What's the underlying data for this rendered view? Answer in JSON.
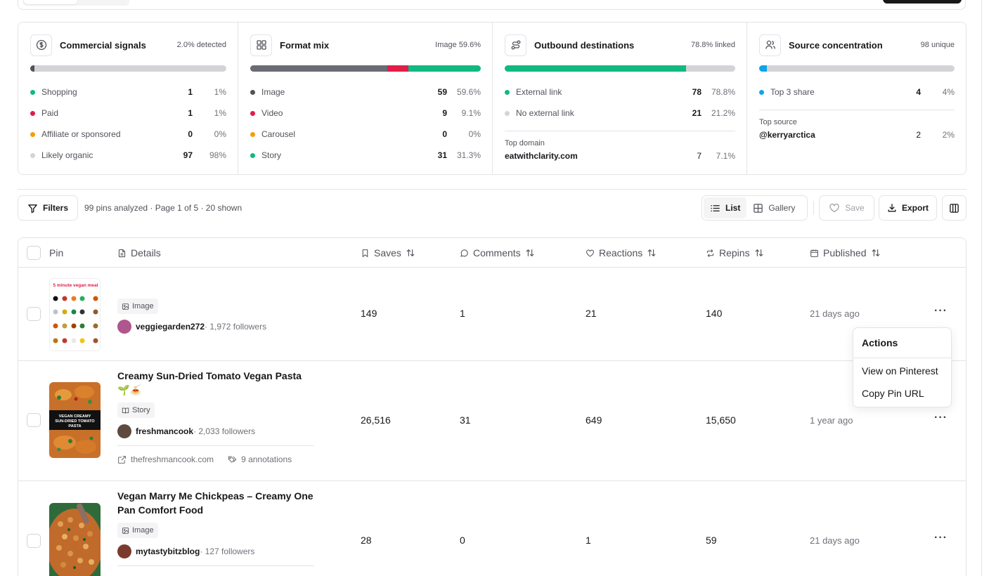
{
  "colors": {
    "green": "#10b981",
    "red": "#e11d48",
    "amber": "#f59e0b",
    "gray": "#d4d4d8",
    "dark": "#52525b",
    "blue": "#0ea5e9"
  },
  "stats": [
    {
      "title": "Commercial signals",
      "meta": "2.0% detected",
      "icon": "dollar-circle-icon",
      "bar": [
        {
          "value": 0.02,
          "color": "#52525b"
        }
      ],
      "rows": [
        {
          "label": "Shopping",
          "count": "1",
          "pct": "1%",
          "color": "#10b981"
        },
        {
          "label": "Paid",
          "count": "1",
          "pct": "1%",
          "color": "#e11d48"
        },
        {
          "label": "Affiliate or sponsored",
          "count": "0",
          "pct": "0%",
          "color": "#f59e0b"
        },
        {
          "label": "Likely organic",
          "count": "97",
          "pct": "98%",
          "color": "#d4d4d8"
        }
      ]
    },
    {
      "title": "Format mix",
      "meta": "Image 59.6%",
      "icon": "grid-icon",
      "bar": [
        {
          "value": 0.596,
          "color": "#6b6b73"
        },
        {
          "value": 0.091,
          "color": "#e11d48"
        },
        {
          "value": 0.313,
          "color": "#10b981"
        }
      ],
      "rows": [
        {
          "label": "Image",
          "count": "59",
          "pct": "59.6%",
          "color": "#52525b"
        },
        {
          "label": "Video",
          "count": "9",
          "pct": "9.1%",
          "color": "#e11d48"
        },
        {
          "label": "Carousel",
          "count": "0",
          "pct": "0%",
          "color": "#f59e0b"
        },
        {
          "label": "Story",
          "count": "31",
          "pct": "31.3%",
          "color": "#10b981"
        }
      ]
    },
    {
      "title": "Outbound destinations",
      "meta": "78.8% linked",
      "icon": "route-icon",
      "bar": [
        {
          "value": 0.788,
          "color": "#10b981"
        }
      ],
      "rows": [
        {
          "label": "External link",
          "count": "78",
          "pct": "78.8%",
          "color": "#10b981"
        },
        {
          "label": "No external link",
          "count": "21",
          "pct": "21.2%",
          "color": "#d4d4d8"
        }
      ],
      "sub": {
        "label": "Top domain",
        "name": "eatwithclarity.com",
        "count": "7",
        "pct": "7.1%"
      }
    },
    {
      "title": "Source concentration",
      "meta": "98 unique",
      "icon": "users-icon",
      "bar": [
        {
          "value": 0.04,
          "color": "#0ea5e9"
        }
      ],
      "rows": [
        {
          "label": "Top 3 share",
          "count": "4",
          "pct": "4%",
          "color": "#0ea5e9"
        }
      ],
      "sub": {
        "label": "Top source",
        "name": "@kerryarctica",
        "count": "2",
        "pct": "2%"
      }
    }
  ],
  "toolbar": {
    "filters_label": "Filters",
    "summary": "99 pins analyzed · Page 1 of 5 · 20 shown",
    "list_label": "List",
    "gallery_label": "Gallery",
    "save_label": "Save",
    "export_label": "Export"
  },
  "table": {
    "headers": {
      "pin": "Pin",
      "details": "Details",
      "saves": "Saves",
      "comments": "Comments",
      "reactions": "Reactions",
      "repins": "Repins",
      "published": "Published"
    },
    "rows": [
      {
        "title": "",
        "format": "Image",
        "author": "veggiegarden272",
        "followers": " · 1,972 followers",
        "saves": "149",
        "comments": "1",
        "reactions": "21",
        "repins": "140",
        "published": "21 days ago",
        "thumb_text": "5 minute vegan meal"
      },
      {
        "title": "Creamy Sun-Dried Tomato Vegan Pasta 🌱🍝",
        "format": "Story",
        "author": "freshmancook",
        "followers": " · 2,033 followers",
        "domain": "thefreshmancook.com",
        "annotations": "9 annotations",
        "saves": "26,516",
        "comments": "31",
        "reactions": "649",
        "repins": "15,650",
        "published": "1 year ago",
        "thumb_text": "VEGAN CREAMY SUN-DRIED TOMATO PASTA"
      },
      {
        "title": "Vegan Marry Me Chickpeas – Creamy One Pan Comfort Food",
        "format": "Image",
        "author": "mytastybitzblog",
        "followers": " · 127 followers",
        "saves": "28",
        "comments": "0",
        "reactions": "1",
        "repins": "59",
        "published": "21 days ago"
      }
    ]
  },
  "menu": {
    "title": "Actions",
    "items": [
      "View on Pinterest",
      "Copy Pin URL"
    ]
  }
}
